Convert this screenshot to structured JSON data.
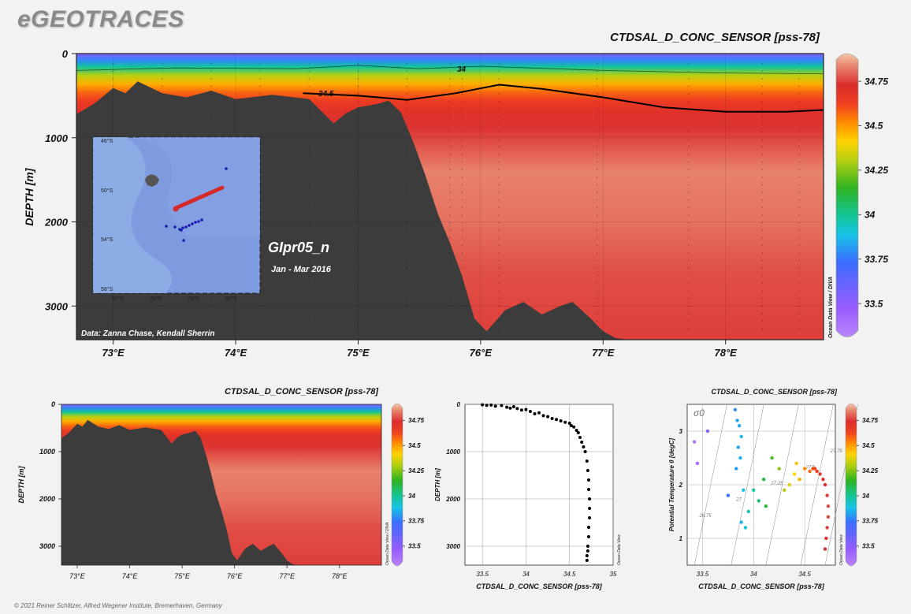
{
  "brand": "eGEOTRACES",
  "copyright": "© 2021 Reiner Schlitzer, Alfred Wegener Institute, Bremerhaven, Germany",
  "colors": {
    "background": "#f2f2f2",
    "seafloor": "#3c3c3c",
    "contour_line": "#000000",
    "map_ocean": "#7e9be0",
    "map_track": "#d42a2a",
    "map_stations": "#1a1ab0"
  },
  "colorscale": {
    "stops": [
      {
        "v": 33.35,
        "c": "#b887ff"
      },
      {
        "v": 33.5,
        "c": "#9a5cff"
      },
      {
        "v": 33.75,
        "c": "#3b6cff"
      },
      {
        "v": 33.9,
        "c": "#16c4e6"
      },
      {
        "v": 34.0,
        "c": "#12c596"
      },
      {
        "v": 34.15,
        "c": "#2fb321"
      },
      {
        "v": 34.3,
        "c": "#b8d010"
      },
      {
        "v": 34.4,
        "c": "#ffd200"
      },
      {
        "v": 34.5,
        "c": "#ff8c00"
      },
      {
        "v": 34.6,
        "c": "#f04020"
      },
      {
        "v": 34.7,
        "c": "#db2d2d"
      },
      {
        "v": 34.8,
        "c": "#e8826c"
      },
      {
        "v": 34.87,
        "c": "#f6c6a6"
      }
    ]
  },
  "main": {
    "title": "CTDSAL_D_CONC_SENSOR [pss-78]",
    "ylabel": "DEPTH [m]",
    "section_name": "GIpr05_n",
    "date_range": "Jan - Mar 2016",
    "credit": "Data: Zanna Chase, Kendall Sherrin",
    "odv_label": "Ocean Data View / DIVA",
    "contour_labels": [
      "34",
      "34.5"
    ],
    "inset_map": {
      "lat_labels": [
        "46°S",
        "50°S",
        "54°S",
        "58°S"
      ],
      "lon_labels": [
        "65°E",
        "70°E",
        "75°E",
        "80°E"
      ]
    }
  },
  "chart_data": [
    {
      "type": "heatmap",
      "title": "CTDSAL_D_CONC_SENSOR [pss-78]",
      "xlabel": "",
      "ylabel": "DEPTH [m]",
      "xlim": [
        72.7,
        78.8
      ],
      "ylim": [
        3400,
        0
      ],
      "x_ticks": [
        "73°E",
        "74°E",
        "75°E",
        "76°E",
        "77°E",
        "78°E"
      ],
      "y_ticks": [
        "0",
        "1000",
        "2000",
        "3000"
      ],
      "colorbar_ticks": [
        "33.5",
        "33.75",
        "34",
        "34.25",
        "34.5",
        "34.75"
      ],
      "colorbar_range": [
        33.35,
        34.87
      ],
      "bathymetry": {
        "lon": [
          72.7,
          72.85,
          73.0,
          73.1,
          73.2,
          73.4,
          73.6,
          73.8,
          74.0,
          74.3,
          74.6,
          74.8,
          74.9,
          75.0,
          75.15,
          75.25,
          75.35,
          75.45,
          75.55,
          75.65,
          75.75,
          75.85,
          75.95,
          76.05,
          76.2,
          76.35,
          76.5,
          76.65,
          76.75,
          76.9,
          77.0,
          77.1,
          77.2
        ],
        "depth": [
          720,
          590,
          410,
          470,
          330,
          470,
          520,
          440,
          540,
          490,
          540,
          830,
          710,
          640,
          600,
          560,
          700,
          1050,
          1450,
          1900,
          2250,
          2650,
          3150,
          3300,
          3050,
          2950,
          3100,
          3000,
          2950,
          3150,
          3300,
          3380,
          3400
        ]
      },
      "contours": [
        {
          "level": 34,
          "lon": [
            72.7,
            73.5,
            74.5,
            75.0,
            75.5,
            76.0,
            77.0,
            78.0,
            78.8
          ],
          "depth": [
            200,
            170,
            180,
            140,
            180,
            150,
            200,
            230,
            240
          ]
        },
        {
          "level": 34.5,
          "lon": [
            74.55,
            75.0,
            75.4,
            75.8,
            76.15,
            76.5,
            77.0,
            77.5,
            78.0,
            78.5,
            78.8
          ],
          "depth": [
            470,
            500,
            550,
            470,
            370,
            420,
            520,
            640,
            690,
            690,
            670
          ]
        }
      ]
    },
    {
      "type": "heatmap",
      "title": "CTDSAL_D_CONC_SENSOR [pss-78]",
      "ylabel": "DEPTH [m]",
      "xlim": [
        72.7,
        78.8
      ],
      "ylim": [
        3400,
        0
      ],
      "x_ticks": [
        "73°E",
        "74°E",
        "75°E",
        "76°E",
        "77°E",
        "78°E"
      ],
      "y_ticks": [
        "0",
        "1000",
        "2000",
        "3000"
      ],
      "colorbar_ticks": [
        "33.5",
        "33.75",
        "34",
        "34.25",
        "34.5",
        "34.75"
      ],
      "odv_label": "Ocean Data View / DIVA"
    },
    {
      "type": "scatter",
      "title": "",
      "xlabel": "CTDSAL_D_CONC_SENSOR [pss-78]",
      "ylabel": "DEPTH [m]",
      "xlim": [
        33.3,
        35.0
      ],
      "ylim": [
        3400,
        0
      ],
      "x_ticks": [
        "33.5",
        "34",
        "34.5",
        "35"
      ],
      "y_ticks": [
        "0",
        "1000",
        "2000",
        "3000"
      ],
      "odv_label": "Ocean Data View",
      "x": [
        33.5,
        33.55,
        33.6,
        33.65,
        33.72,
        33.78,
        33.82,
        33.86,
        33.9,
        33.95,
        34.0,
        34.05,
        34.1,
        34.15,
        34.2,
        34.25,
        34.3,
        34.35,
        34.4,
        34.45,
        34.5,
        34.52,
        34.55,
        34.58,
        34.6,
        34.62,
        34.64,
        34.66,
        34.68,
        34.7,
        34.71,
        34.72,
        34.72,
        34.73,
        34.73,
        34.73,
        34.72,
        34.72,
        34.71,
        34.71,
        34.7,
        34.7
      ],
      "y": [
        10,
        20,
        15,
        40,
        25,
        60,
        80,
        50,
        90,
        120,
        110,
        150,
        200,
        180,
        240,
        260,
        300,
        320,
        350,
        380,
        400,
        450,
        480,
        550,
        600,
        700,
        800,
        900,
        1000,
        1200,
        1400,
        1600,
        1800,
        2000,
        2200,
        2400,
        2600,
        2800,
        3000,
        3100,
        3200,
        3300
      ]
    },
    {
      "type": "scatter",
      "title": "CTDSAL_D_CONC_SENSOR [pss-78]",
      "xlabel": "CTDSAL_D_CONC_SENSOR [pss-78]",
      "ylabel": "Potential Temperature θ [degC]",
      "xlim": [
        33.35,
        34.8
      ],
      "ylim": [
        0.5,
        3.5
      ],
      "x_ticks": [
        "33.5",
        "34",
        "34.5"
      ],
      "y_ticks": [
        "1",
        "2",
        "3"
      ],
      "sigma_label": "σ0",
      "isopycnal_labels": [
        "26.75",
        "27",
        "27.25",
        "27.5",
        "27.75"
      ],
      "colorbar_ticks": [
        "33.5",
        "33.75",
        "34",
        "34.25",
        "34.5",
        "34.75"
      ],
      "odv_label": "Ocean Data View",
      "x": [
        33.42,
        33.45,
        33.55,
        33.82,
        33.84,
        33.86,
        33.88,
        33.85,
        33.87,
        33.83,
        33.9,
        33.75,
        33.88,
        33.92,
        33.95,
        34.0,
        34.05,
        34.1,
        34.12,
        34.18,
        34.25,
        34.3,
        34.35,
        34.4,
        34.42,
        34.45,
        34.5,
        34.55,
        34.58,
        34.6,
        34.62,
        34.65,
        34.68,
        34.7,
        34.72,
        34.73,
        34.73,
        34.72,
        34.71,
        34.7
      ],
      "y": [
        2.8,
        2.4,
        3.0,
        3.4,
        3.2,
        3.1,
        2.9,
        2.7,
        2.5,
        2.3,
        1.9,
        1.8,
        1.3,
        1.2,
        1.5,
        1.9,
        1.7,
        2.1,
        1.6,
        2.5,
        2.3,
        1.9,
        2.0,
        2.2,
        2.4,
        2.1,
        2.3,
        2.25,
        2.3,
        2.3,
        2.25,
        2.2,
        2.1,
        2.0,
        1.8,
        1.6,
        1.4,
        1.2,
        1.0,
        0.8
      ]
    }
  ]
}
